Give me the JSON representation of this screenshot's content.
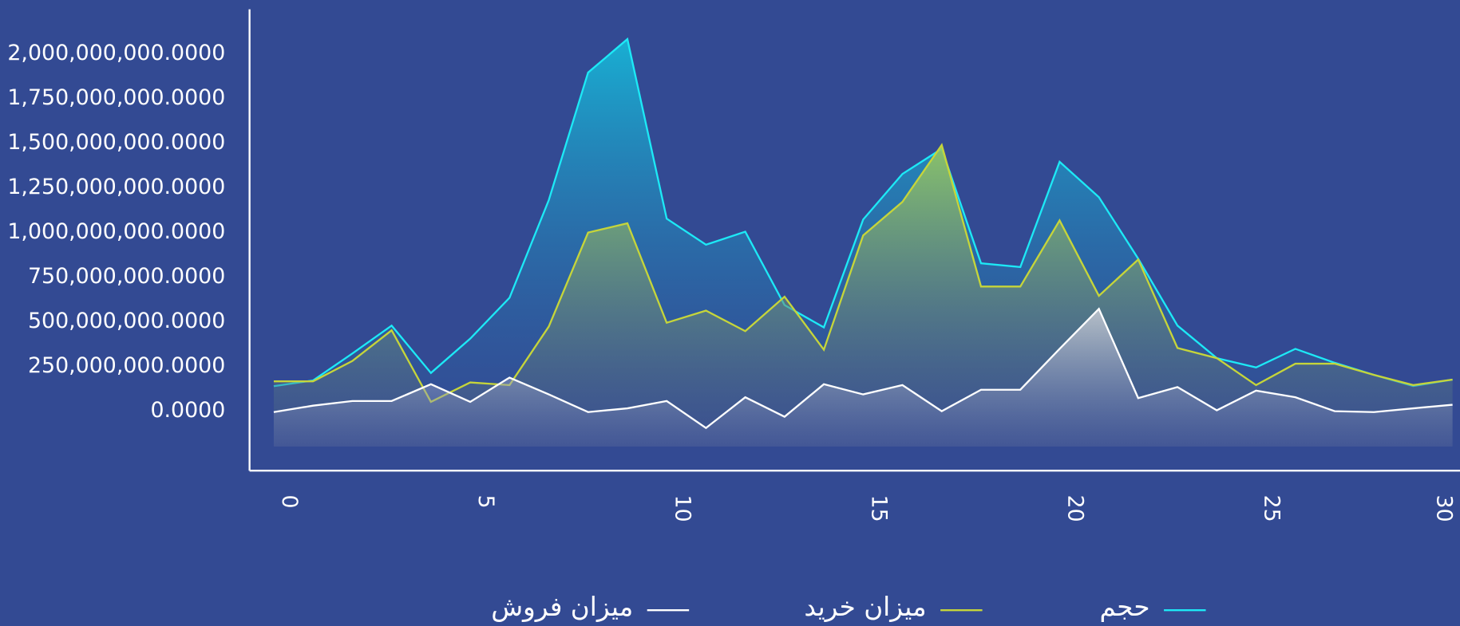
{
  "chart_data": {
    "type": "area",
    "x": [
      0,
      1,
      2,
      3,
      4,
      5,
      6,
      7,
      8,
      9,
      10,
      11,
      12,
      13,
      14,
      15,
      16,
      17,
      18,
      19,
      20,
      21,
      22,
      23,
      24,
      25,
      26,
      27,
      28,
      29,
      30
    ],
    "series": [
      {
        "name": "حجم",
        "color": "#1de9f6",
        "values": [
          140000000,
          172000000,
          323000000,
          479000000,
          214000000,
          406000000,
          635000000,
          1182000000,
          1896000000,
          2083000000,
          1078000000,
          932000000,
          1005000000,
          594000000,
          469000000,
          1073000000,
          1328000000,
          1469000000,
          828000000,
          807000000,
          1396000000,
          1198000000,
          854000000,
          479000000,
          297000000,
          245000000,
          349000000,
          271000000,
          203000000,
          141000000,
          177000000
        ]
      },
      {
        "name": "میزان خرید",
        "color": "#c6d53a",
        "values": [
          167000000,
          167000000,
          281000000,
          453000000,
          52000000,
          161000000,
          146000000,
          474000000,
          1000000000,
          1052000000,
          495000000,
          563000000,
          448000000,
          641000000,
          344000000,
          984000000,
          1172000000,
          1490000000,
          698000000,
          698000000,
          1068000000,
          646000000,
          849000000,
          354000000,
          297000000,
          146000000,
          266000000,
          266000000,
          203000000,
          146000000,
          177000000
        ]
      },
      {
        "name": "میزان فروش",
        "color": "#ffffff",
        "values": [
          -5000000,
          31000000,
          57000000,
          57000000,
          151000000,
          52000000,
          188000000,
          94000000,
          -5000000,
          16000000,
          57000000,
          -94000000,
          78000000,
          -31000000,
          151000000,
          94000000,
          146000000,
          0,
          120000000,
          120000000,
          349000000,
          573000000,
          73000000,
          135000000,
          5000000,
          115000000,
          78000000,
          0,
          -5000000,
          16000000,
          36000000
        ]
      }
    ],
    "xlim": [
      0,
      30
    ],
    "xticks": [
      0,
      5,
      10,
      15,
      20,
      25,
      30
    ],
    "ylim": [
      -333000000,
      2250000000
    ],
    "yticks": [
      {
        "value": 0,
        "label": "0.0000"
      },
      {
        "value": 250000000,
        "label": "250,000,000.0000"
      },
      {
        "value": 500000000,
        "label": "500,000,000.0000"
      },
      {
        "value": 750000000,
        "label": "750,000,000.0000"
      },
      {
        "value": 1000000000,
        "label": "1,000,000,000.0000"
      },
      {
        "value": 1250000000,
        "label": "1,250,000,000.0000"
      },
      {
        "value": 1500000000,
        "label": "1,500,000,000.0000"
      },
      {
        "value": 1750000000,
        "label": "1,750,000,000.0000"
      },
      {
        "value": 2000000000,
        "label": "2,000,000,000.0000"
      }
    ],
    "grid": false,
    "legend": "bottom"
  }
}
